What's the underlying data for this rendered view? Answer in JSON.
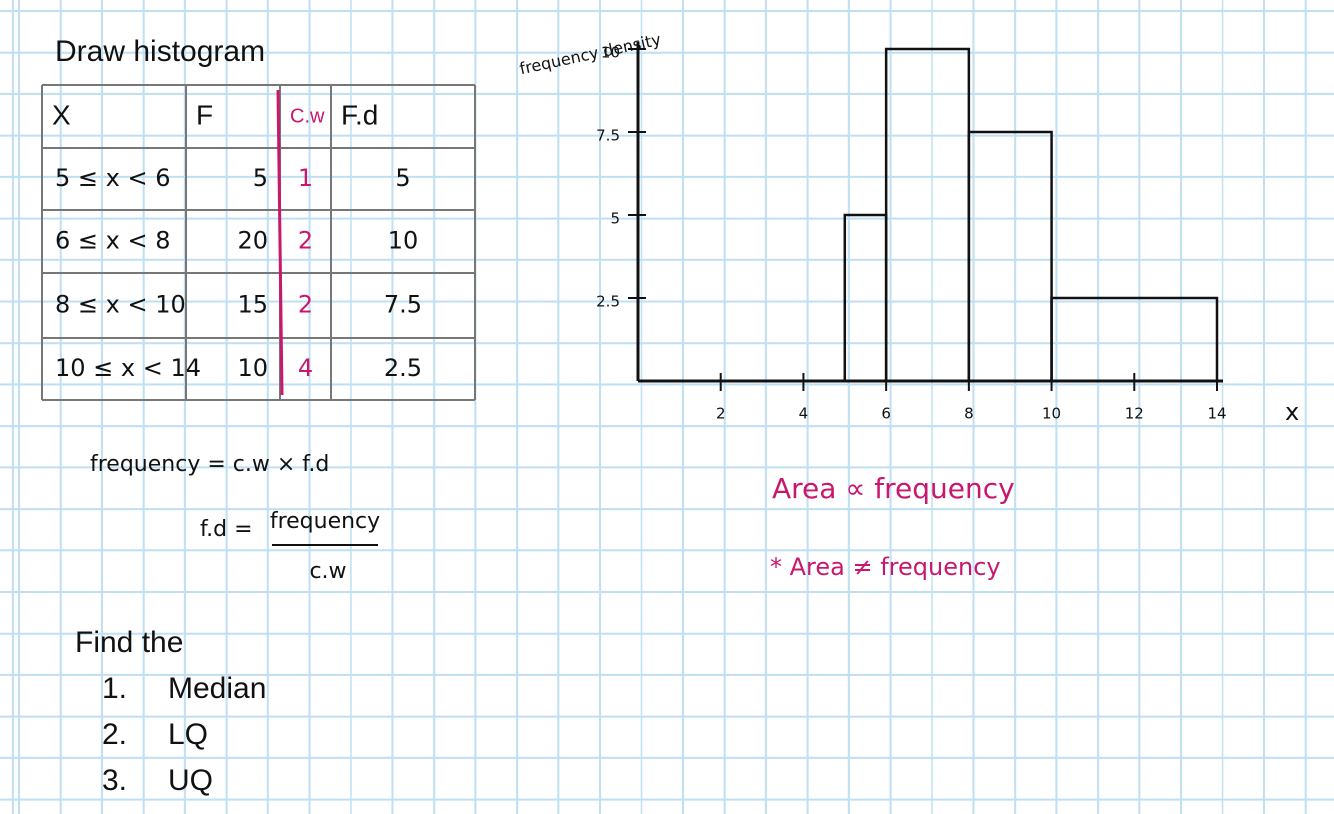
{
  "title": "Draw histogram",
  "table": {
    "header": [
      "X",
      "F",
      "C.w",
      "F.d"
    ],
    "rows": [
      [
        "5 ≤ x < 6",
        "5",
        "1",
        "5"
      ],
      [
        "6 ≤ x < 8",
        "20",
        "2",
        "10"
      ],
      [
        "8 ≤ x < 10",
        "15",
        "2",
        "7.5"
      ],
      [
        "10 ≤ x < 14",
        "10",
        "4",
        "2.5"
      ]
    ]
  },
  "formulas": {
    "frequency": "frequency = c.w × f.d",
    "fd_left": "f.d =",
    "fd_numerator": "frequency",
    "fd_denominator": "c.w"
  },
  "notes": [
    "Area ∝ frequency",
    "* Area ≠ frequency"
  ],
  "tasks": {
    "heading": "Find the",
    "items": [
      {
        "marker": "1.",
        "text": "Median"
      },
      {
        "marker": "2.",
        "text": "LQ"
      },
      {
        "marker": "3.",
        "text": "UQ"
      }
    ]
  },
  "chart_data": {
    "type": "histogram",
    "ylabel": "frequency density",
    "xlabel": "x",
    "bins": [
      5,
      6,
      8,
      10,
      14
    ],
    "values": [
      5,
      10,
      7.5,
      2.5
    ],
    "color": "#111111",
    "xlim": [
      0,
      14
    ],
    "xticks": [
      2,
      4,
      6,
      8,
      10,
      12,
      14
    ],
    "ylim": [
      0,
      10
    ],
    "yticks": [
      2.5,
      5,
      7.5,
      10
    ]
  }
}
